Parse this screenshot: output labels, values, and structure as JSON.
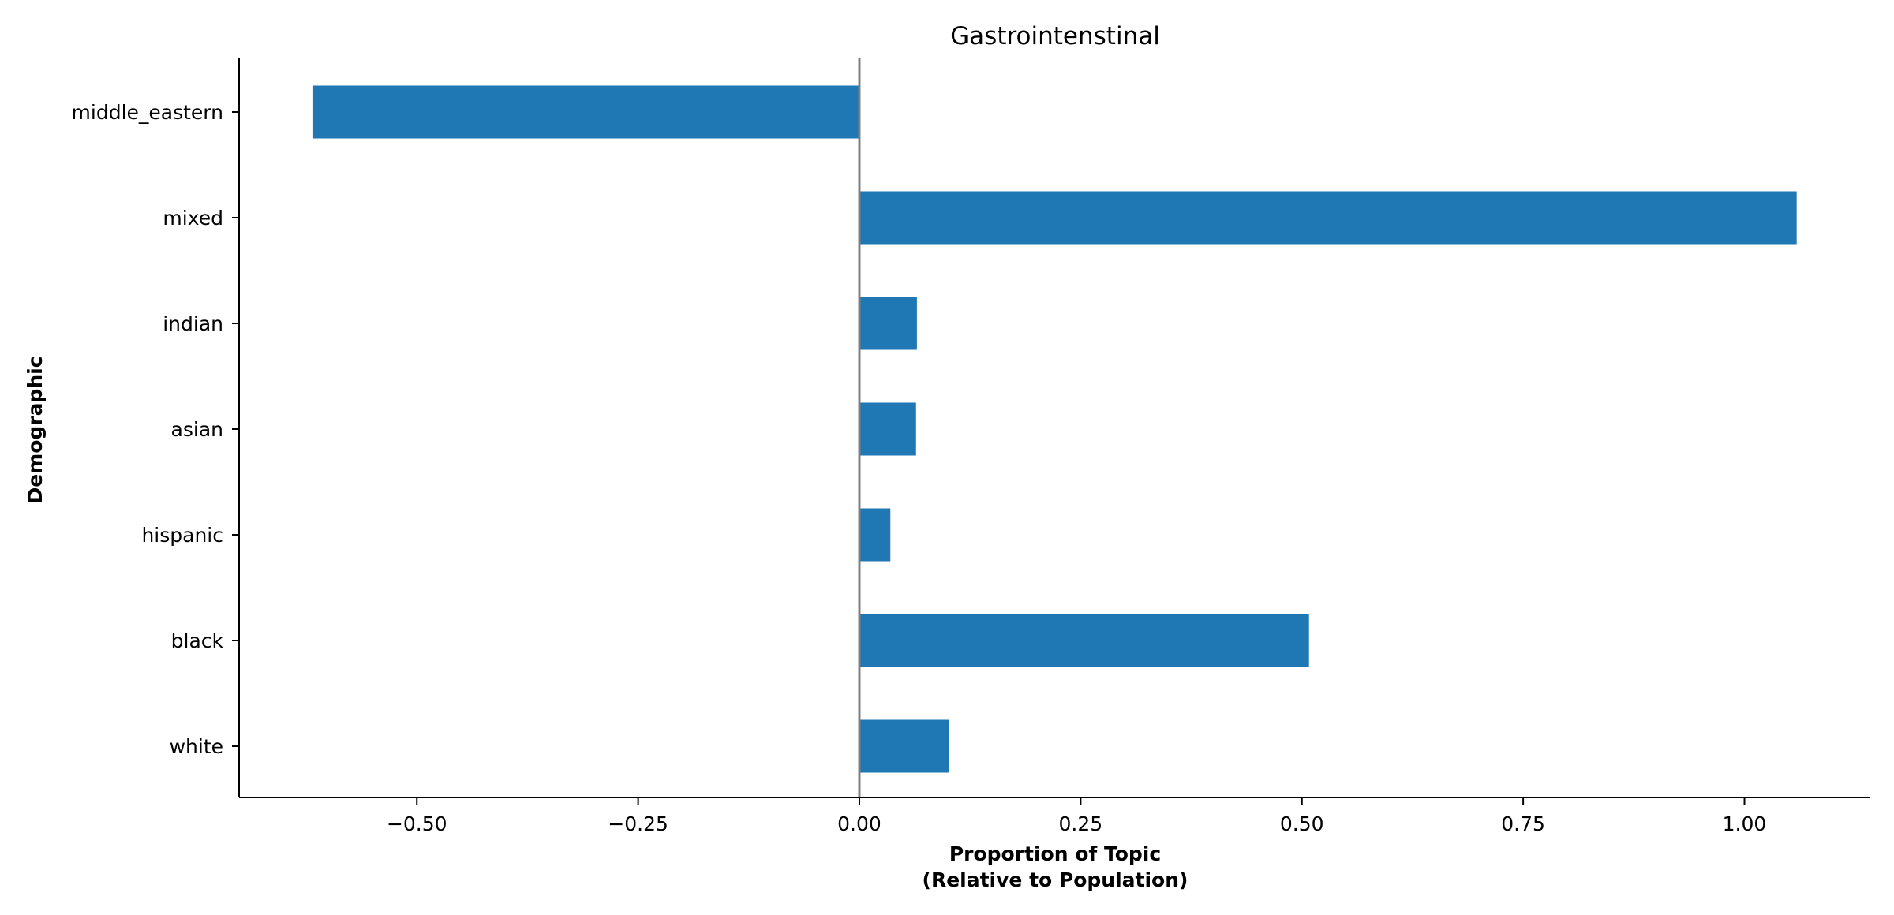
{
  "chart_data": {
    "type": "bar",
    "orientation": "horizontal",
    "title": "Gastrointenstinal",
    "xlabel_lines": [
      "Proportion of Topic",
      "(Relative to Population)"
    ],
    "ylabel": "Demographic",
    "categories": [
      "white",
      "black",
      "hispanic",
      "asian",
      "indian",
      "mixed",
      "middle_eastern"
    ],
    "values": [
      0.101,
      0.508,
      0.035,
      0.064,
      0.065,
      1.059,
      -0.618
    ],
    "xlim": [
      -0.7,
      1.15
    ],
    "xticks": [
      -0.5,
      -0.25,
      0.0,
      0.25,
      0.5,
      0.75,
      1.0
    ],
    "xtick_labels": [
      "−0.50",
      "−0.25",
      "0.00",
      "0.25",
      "0.50",
      "0.75",
      "1.00"
    ],
    "reference_line_x": 0.0,
    "grid": false,
    "bar_color": "#1f77b4",
    "reference_line_color": "#808080"
  }
}
